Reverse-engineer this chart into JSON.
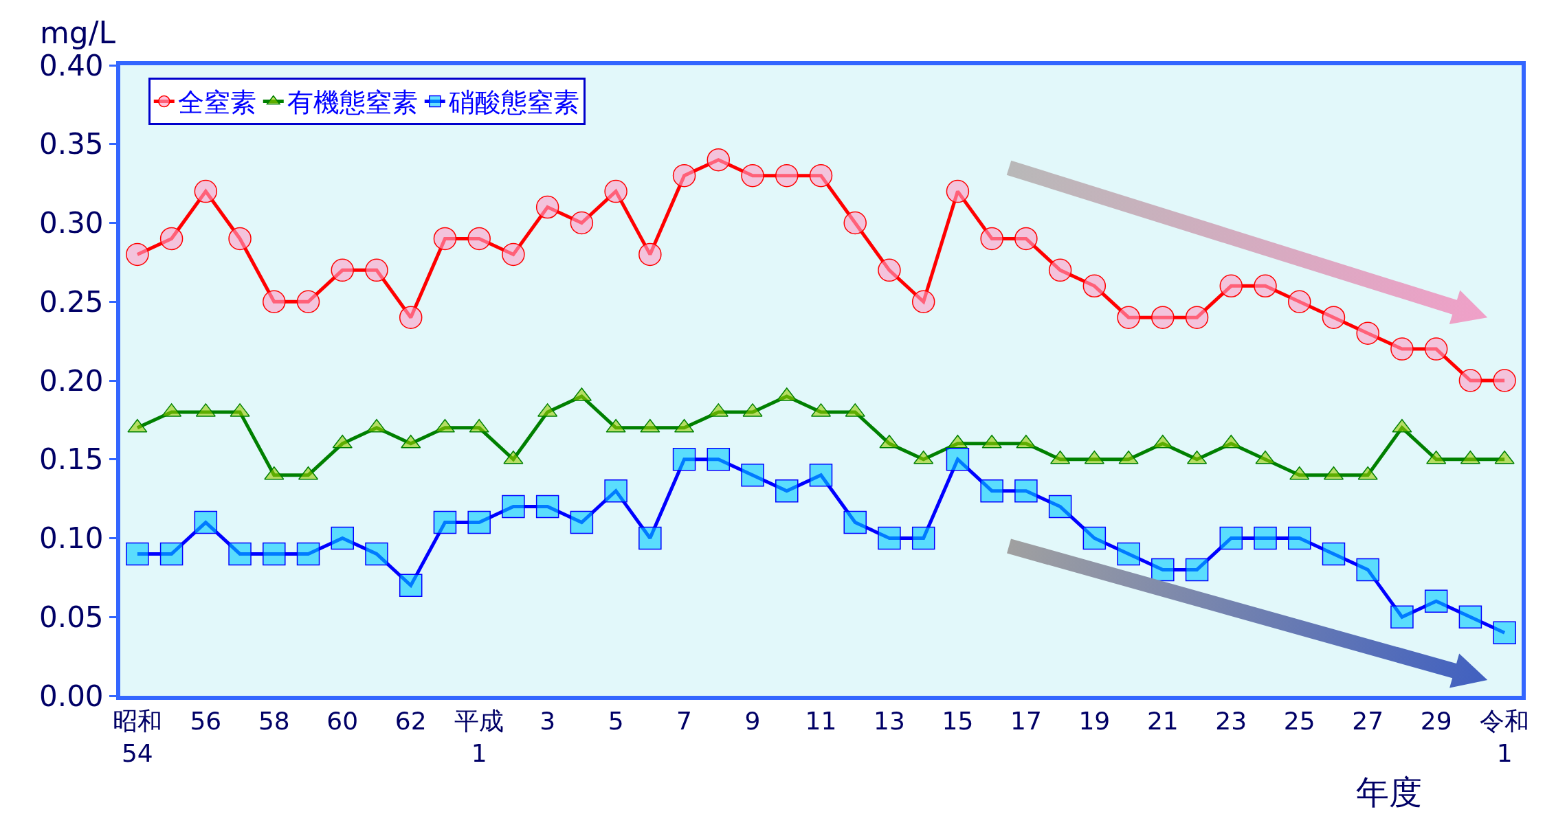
{
  "chart_data": {
    "type": "line",
    "xlabel": "年度",
    "ylabel": "mg/L",
    "categories": [
      "昭和\n54",
      null,
      "56",
      null,
      "58",
      null,
      "60",
      null,
      "62",
      null,
      "平成\n1",
      null,
      "3",
      null,
      "5",
      null,
      "7",
      null,
      "9",
      null,
      "11",
      null,
      "13",
      null,
      "15",
      null,
      "17",
      null,
      "19",
      null,
      "21",
      null,
      "23",
      null,
      "25",
      null,
      "27",
      null,
      "29",
      null,
      "令和\n1"
    ],
    "series": [
      {
        "name": "全窒素",
        "color": "#ff0000",
        "marker": "circle",
        "values": [
          0.28,
          0.29,
          0.32,
          0.29,
          0.25,
          0.25,
          0.27,
          0.27,
          0.24,
          0.29,
          0.29,
          0.28,
          0.31,
          0.3,
          0.32,
          0.28,
          0.33,
          0.34,
          0.33,
          0.33,
          0.33,
          0.3,
          0.27,
          0.25,
          0.32,
          0.29,
          0.29,
          0.27,
          0.26,
          0.24,
          0.24,
          0.24,
          0.26,
          0.26,
          0.25,
          0.24,
          0.23,
          0.22,
          0.22,
          0.2,
          0.2
        ]
      },
      {
        "name": "有機態窒素",
        "color": "#008000",
        "marker": "triangle",
        "values": [
          0.17,
          0.18,
          0.18,
          0.18,
          0.14,
          0.14,
          0.16,
          0.17,
          0.16,
          0.17,
          0.17,
          0.15,
          0.18,
          0.19,
          0.17,
          0.17,
          0.17,
          0.18,
          0.18,
          0.19,
          0.18,
          0.18,
          0.16,
          0.15,
          0.16,
          0.16,
          0.16,
          0.15,
          0.15,
          0.15,
          0.16,
          0.15,
          0.16,
          0.15,
          0.14,
          0.14,
          0.14,
          0.17,
          0.15,
          0.15,
          0.15
        ]
      },
      {
        "name": "硝酸態窒素",
        "color": "#0000ff",
        "marker": "square",
        "values": [
          0.09,
          0.09,
          0.11,
          0.09,
          0.09,
          0.09,
          0.1,
          0.09,
          0.07,
          0.11,
          0.11,
          0.12,
          0.12,
          0.11,
          0.13,
          0.1,
          0.15,
          0.15,
          0.14,
          0.13,
          0.14,
          0.11,
          0.1,
          0.1,
          0.15,
          0.13,
          0.13,
          0.12,
          0.1,
          0.09,
          0.08,
          0.08,
          0.1,
          0.1,
          0.1,
          0.09,
          0.08,
          0.05,
          0.06,
          0.05,
          0.04
        ]
      }
    ],
    "ylim": [
      0,
      0.4
    ],
    "yticks": [
      {
        "value": 0,
        "label": "0.00"
      },
      {
        "value": 0.05,
        "label": "0.05"
      },
      {
        "value": 0.1,
        "label": "0.10"
      },
      {
        "value": 0.15,
        "label": "0.15"
      },
      {
        "value": 0.2,
        "label": "0.20"
      },
      {
        "value": 0.25,
        "label": "0.25"
      },
      {
        "value": 0.3,
        "label": "0.30"
      },
      {
        "value": 0.35,
        "label": "0.35"
      },
      {
        "value": 0.4,
        "label": "0.40"
      }
    ],
    "grid": false,
    "legend": "top left"
  }
}
